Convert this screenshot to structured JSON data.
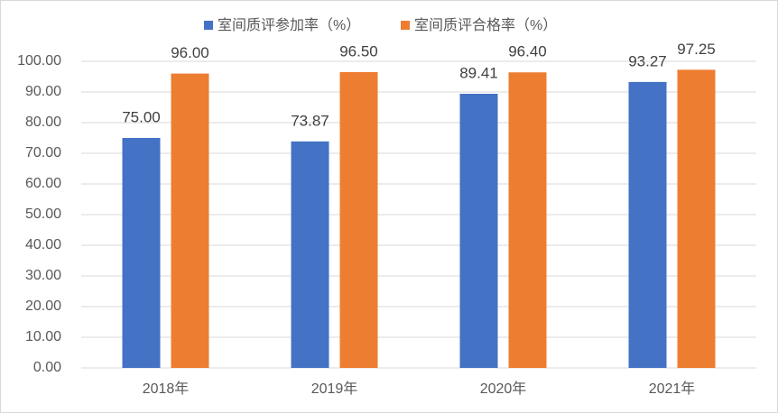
{
  "chart_data": {
    "type": "bar",
    "categories": [
      "2018年",
      "2019年",
      "2020年",
      "2021年"
    ],
    "series": [
      {
        "name": "室间质评参加率（%）",
        "color": "#4472c4",
        "values": [
          75,
          73.87,
          89.41,
          93.27
        ],
        "value_labels": [
          "75.00",
          "73.87",
          "89.41",
          "93.27"
        ]
      },
      {
        "name": "室间质评合格率（%）",
        "color": "#ed7d31",
        "values": [
          96,
          96.5,
          96.4,
          97.25
        ],
        "value_labels": [
          "96.00",
          "96.50",
          "96.40",
          "97.25"
        ]
      }
    ],
    "ylim": [
      0,
      100
    ],
    "yticks": [
      {
        "value": 0,
        "label": "0.00"
      },
      {
        "value": 10,
        "label": "10.00"
      },
      {
        "value": 20,
        "label": "20.00"
      },
      {
        "value": 30,
        "label": "30.00"
      },
      {
        "value": 40,
        "label": "40.00"
      },
      {
        "value": 50,
        "label": "50.00"
      },
      {
        "value": 60,
        "label": "60.00"
      },
      {
        "value": 70,
        "label": "70.00"
      },
      {
        "value": 80,
        "label": "80.00"
      },
      {
        "value": 90,
        "label": "90.00"
      },
      {
        "value": 100,
        "label": "100.00"
      }
    ],
    "grid": true,
    "legend": "top"
  }
}
